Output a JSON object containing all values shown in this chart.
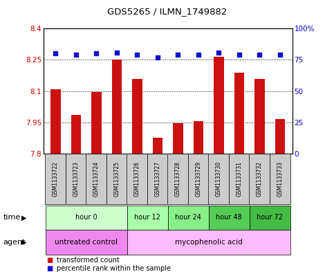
{
  "title": "GDS5265 / ILMN_1749882",
  "samples": [
    "GSM1133722",
    "GSM1133723",
    "GSM1133724",
    "GSM1133725",
    "GSM1133726",
    "GSM1133727",
    "GSM1133728",
    "GSM1133729",
    "GSM1133730",
    "GSM1133731",
    "GSM1133732",
    "GSM1133733"
  ],
  "transformed_count": [
    8.11,
    7.985,
    8.095,
    8.25,
    8.16,
    7.875,
    7.945,
    7.955,
    8.265,
    8.19,
    8.16,
    7.965
  ],
  "percentile_rank": [
    80,
    79,
    80,
    81,
    79,
    77,
    79,
    79,
    81,
    79,
    79,
    79
  ],
  "ylim_left": [
    7.8,
    8.4
  ],
  "ylim_right": [
    0,
    100
  ],
  "yticks_left": [
    7.8,
    7.95,
    8.1,
    8.25,
    8.4
  ],
  "yticks_right": [
    0,
    25,
    50,
    75,
    100
  ],
  "bar_color": "#cc1111",
  "dot_color": "#1111cc",
  "time_groups": [
    {
      "label": "hour 0",
      "start": 0,
      "end": 4,
      "color": "#ccffcc"
    },
    {
      "label": "hour 12",
      "start": 4,
      "end": 6,
      "color": "#aaffaa"
    },
    {
      "label": "hour 24",
      "start": 6,
      "end": 8,
      "color": "#88ee88"
    },
    {
      "label": "hour 48",
      "start": 8,
      "end": 10,
      "color": "#55cc55"
    },
    {
      "label": "hour 72",
      "start": 10,
      "end": 12,
      "color": "#44bb44"
    }
  ],
  "agent_groups": [
    {
      "label": "untreated control",
      "start": 0,
      "end": 4,
      "color": "#ee88ee"
    },
    {
      "label": "mycophenolic acid",
      "start": 4,
      "end": 12,
      "color": "#ffbbff"
    }
  ],
  "ylabel_left_color": "#cc0000",
  "ylabel_right_color": "#0000cc",
  "bg_color": "#ffffff",
  "sample_bg": "#cccccc",
  "legend_red_label": "transformed count",
  "legend_blue_label": "percentile rank within the sample"
}
